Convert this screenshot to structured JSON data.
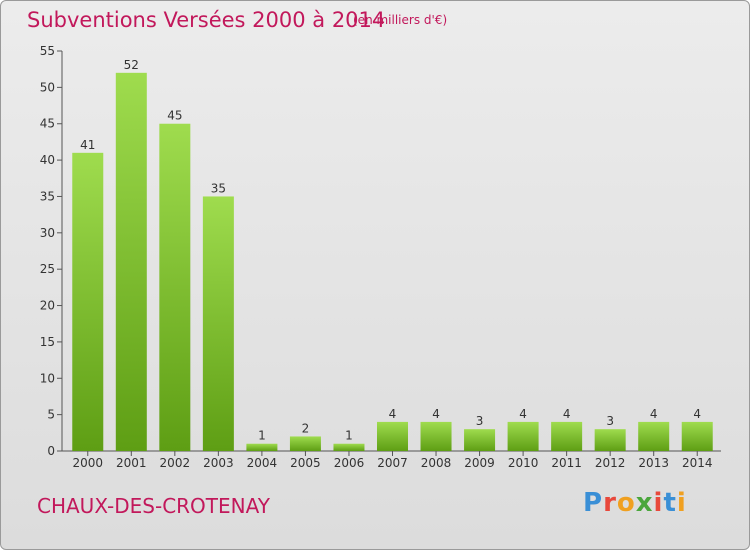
{
  "header": {
    "title": "Subventions Versées 2000 à 2014",
    "unit": "(en milliers d'€)"
  },
  "commune": "CHAUX-DES-CROTENAY",
  "logo": {
    "text": "Proxiti",
    "colors": [
      "#3a8fd6",
      "#e8483b",
      "#f0a020",
      "#4aa63c",
      "#e8483b",
      "#3a8fd6",
      "#f0a020"
    ]
  },
  "colors": {
    "title": "#c2185b",
    "bar_top": "#9fdc4e",
    "bar_bottom": "#5e9e14"
  },
  "chart_data": {
    "type": "bar",
    "title": "Subventions Versées 2000 à 2014",
    "subtitle": "(en milliers d'€)",
    "xlabel": "",
    "ylabel": "",
    "ylim": [
      0,
      55
    ],
    "yticks": [
      0,
      5,
      10,
      15,
      20,
      25,
      30,
      35,
      40,
      45,
      50,
      55
    ],
    "grid": false,
    "categories": [
      "2000",
      "2001",
      "2002",
      "2003",
      "2004",
      "2005",
      "2006",
      "2007",
      "2008",
      "2009",
      "2010",
      "2011",
      "2012",
      "2013",
      "2014"
    ],
    "values": [
      41,
      52,
      45,
      35,
      1,
      2,
      1,
      4,
      4,
      3,
      4,
      4,
      3,
      4,
      4
    ]
  }
}
